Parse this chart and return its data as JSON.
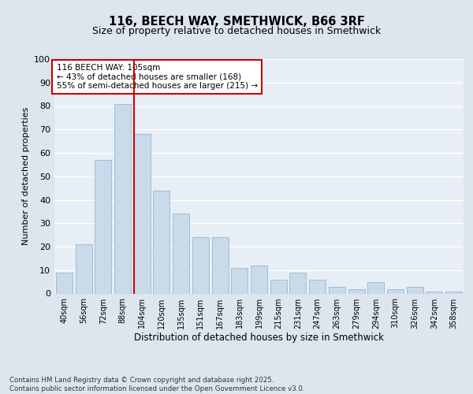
{
  "title1": "116, BEECH WAY, SMETHWICK, B66 3RF",
  "title2": "Size of property relative to detached houses in Smethwick",
  "xlabel": "Distribution of detached houses by size in Smethwick",
  "ylabel": "Number of detached properties",
  "categories": [
    "40sqm",
    "56sqm",
    "72sqm",
    "88sqm",
    "104sqm",
    "120sqm",
    "135sqm",
    "151sqm",
    "167sqm",
    "183sqm",
    "199sqm",
    "215sqm",
    "231sqm",
    "247sqm",
    "263sqm",
    "279sqm",
    "294sqm",
    "310sqm",
    "326sqm",
    "342sqm",
    "358sqm"
  ],
  "values": [
    9,
    21,
    57,
    81,
    68,
    44,
    34,
    24,
    24,
    11,
    12,
    6,
    9,
    6,
    3,
    2,
    5,
    2,
    3,
    1,
    1
  ],
  "bar_color": "#c9daea",
  "bar_edge_color": "#9ab5cc",
  "vline_index": 4,
  "vline_color": "#cc0000",
  "annotation_text": "116 BEECH WAY: 105sqm\n← 43% of detached houses are smaller (168)\n55% of semi-detached houses are larger (215) →",
  "annotation_box_color": "#ffffff",
  "annotation_box_edge": "#cc0000",
  "bg_color": "#dde5ef",
  "plot_bg_color": "#e8eef5",
  "grid_color": "#ffffff",
  "footer": "Contains HM Land Registry data © Crown copyright and database right 2025.\nContains public sector information licensed under the Open Government Licence v3.0.",
  "ylim": [
    0,
    100
  ],
  "yticks": [
    0,
    10,
    20,
    30,
    40,
    50,
    60,
    70,
    80,
    90,
    100
  ]
}
